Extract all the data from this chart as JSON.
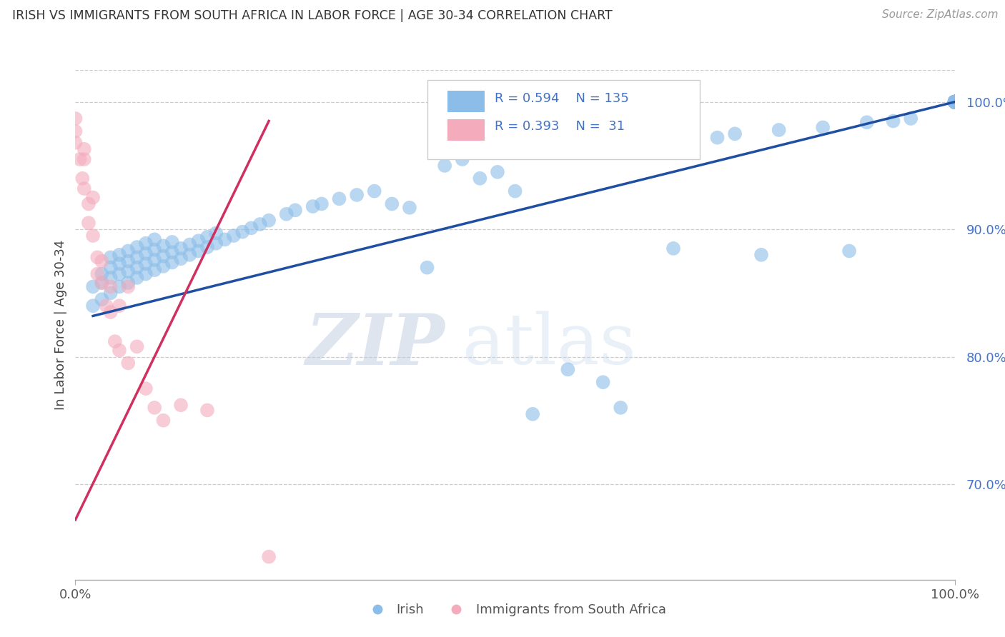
{
  "title": "IRISH VS IMMIGRANTS FROM SOUTH AFRICA IN LABOR FORCE | AGE 30-34 CORRELATION CHART",
  "source": "Source: ZipAtlas.com",
  "ylabel": "In Labor Force | Age 30-34",
  "xlim": [
    0.0,
    1.0
  ],
  "ylim": [
    0.625,
    1.025
  ],
  "y_ticks": [
    0.7,
    0.8,
    0.9,
    1.0
  ],
  "x_ticks": [
    0.0,
    1.0
  ],
  "legend_R1": "0.594",
  "legend_N1": "135",
  "legend_R2": "0.393",
  "legend_N2": "31",
  "blue_color": "#8BBDE8",
  "pink_color": "#F4ABBC",
  "line_blue": "#1E4FA3",
  "line_pink": "#D03060",
  "watermark_zip": "ZIP",
  "watermark_atlas": "atlas",
  "blue_x": [
    0.02,
    0.02,
    0.03,
    0.03,
    0.03,
    0.04,
    0.04,
    0.04,
    0.04,
    0.05,
    0.05,
    0.05,
    0.05,
    0.06,
    0.06,
    0.06,
    0.06,
    0.07,
    0.07,
    0.07,
    0.07,
    0.08,
    0.08,
    0.08,
    0.08,
    0.09,
    0.09,
    0.09,
    0.09,
    0.1,
    0.1,
    0.1,
    0.11,
    0.11,
    0.11,
    0.12,
    0.12,
    0.13,
    0.13,
    0.14,
    0.14,
    0.15,
    0.15,
    0.16,
    0.16,
    0.17,
    0.18,
    0.19,
    0.2,
    0.21,
    0.22,
    0.24,
    0.25,
    0.27,
    0.28,
    0.3,
    0.32,
    0.34,
    0.36,
    0.38,
    0.4,
    0.42,
    0.44,
    0.46,
    0.48,
    0.5,
    0.52,
    0.54,
    0.56,
    0.58,
    0.6,
    0.62,
    0.65,
    0.68,
    0.7,
    0.73,
    0.75,
    0.78,
    0.8,
    0.85,
    0.88,
    0.9,
    0.93,
    0.95,
    1.0,
    1.0,
    1.0,
    1.0,
    1.0,
    1.0,
    1.0,
    1.0,
    1.0,
    1.0,
    1.0,
    1.0,
    1.0,
    1.0,
    1.0,
    1.0,
    1.0,
    1.0,
    1.0,
    1.0,
    1.0,
    1.0,
    1.0,
    1.0,
    1.0,
    1.0,
    1.0,
    1.0,
    1.0,
    1.0,
    1.0,
    1.0,
    1.0,
    1.0,
    1.0,
    1.0,
    1.0,
    1.0,
    1.0,
    1.0,
    1.0,
    1.0,
    1.0,
    1.0,
    1.0,
    1.0,
    1.0,
    1.0,
    1.0,
    1.0,
    1.0
  ],
  "blue_y": [
    0.84,
    0.855,
    0.845,
    0.858,
    0.865,
    0.85,
    0.862,
    0.87,
    0.878,
    0.855,
    0.865,
    0.873,
    0.88,
    0.858,
    0.867,
    0.875,
    0.883,
    0.862,
    0.87,
    0.878,
    0.886,
    0.865,
    0.873,
    0.881,
    0.889,
    0.868,
    0.876,
    0.884,
    0.892,
    0.871,
    0.879,
    0.887,
    0.874,
    0.882,
    0.89,
    0.877,
    0.885,
    0.88,
    0.888,
    0.883,
    0.891,
    0.886,
    0.894,
    0.889,
    0.897,
    0.892,
    0.895,
    0.898,
    0.901,
    0.904,
    0.907,
    0.912,
    0.915,
    0.918,
    0.92,
    0.924,
    0.927,
    0.93,
    0.92,
    0.917,
    0.87,
    0.95,
    0.955,
    0.94,
    0.945,
    0.93,
    0.755,
    0.96,
    0.79,
    0.965,
    0.78,
    0.76,
    0.968,
    0.885,
    0.97,
    0.972,
    0.975,
    0.88,
    0.978,
    0.98,
    0.883,
    0.984,
    0.985,
    0.987,
    1.0,
    1.0,
    1.0,
    1.0,
    1.0,
    1.0,
    1.0,
    1.0,
    1.0,
    1.0,
    1.0,
    1.0,
    1.0,
    1.0,
    1.0,
    1.0,
    1.0,
    1.0,
    1.0,
    1.0,
    1.0,
    1.0,
    1.0,
    1.0,
    1.0,
    1.0,
    1.0,
    1.0,
    1.0,
    1.0,
    1.0,
    1.0,
    1.0,
    1.0,
    1.0,
    1.0,
    1.0,
    1.0,
    1.0,
    1.0,
    1.0,
    1.0,
    1.0,
    1.0,
    1.0,
    1.0,
    1.0,
    1.0,
    1.0,
    1.0,
    1.0
  ],
  "pink_x": [
    0.0,
    0.0,
    0.0,
    0.005,
    0.008,
    0.01,
    0.01,
    0.01,
    0.015,
    0.015,
    0.02,
    0.02,
    0.025,
    0.025,
    0.03,
    0.03,
    0.035,
    0.04,
    0.04,
    0.045,
    0.05,
    0.05,
    0.06,
    0.06,
    0.07,
    0.08,
    0.09,
    0.1,
    0.12,
    0.15,
    0.22
  ],
  "pink_y": [
    0.968,
    0.977,
    0.987,
    0.955,
    0.94,
    0.932,
    0.955,
    0.963,
    0.905,
    0.92,
    0.895,
    0.925,
    0.865,
    0.878,
    0.858,
    0.875,
    0.84,
    0.835,
    0.855,
    0.812,
    0.805,
    0.84,
    0.795,
    0.855,
    0.808,
    0.775,
    0.76,
    0.75,
    0.762,
    0.758,
    0.643
  ],
  "blue_line_x": [
    0.02,
    1.0
  ],
  "blue_line_y_start": 0.832,
  "blue_line_y_end": 1.0,
  "pink_line_x": [
    0.0,
    0.22
  ],
  "pink_line_y_start": 0.672,
  "pink_line_y_end": 0.985
}
